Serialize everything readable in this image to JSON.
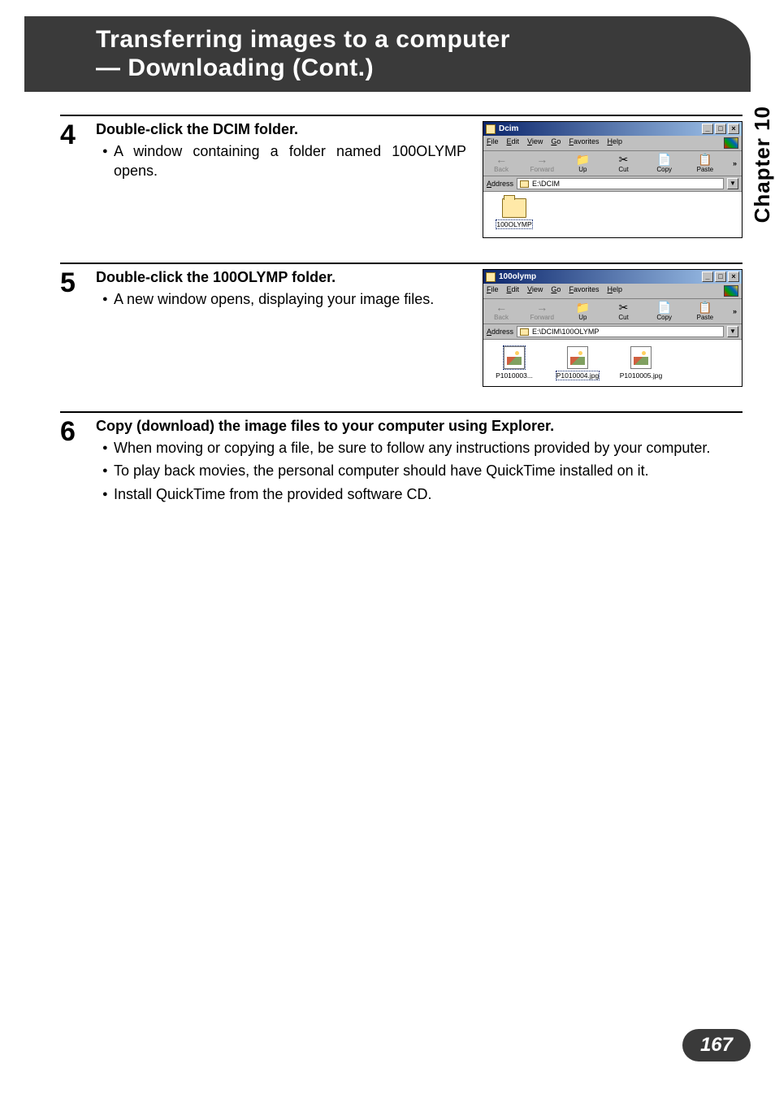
{
  "header": {
    "title_line1": "Transferring images to a computer",
    "title_line2": "— Downloading (Cont.)"
  },
  "sidebar": {
    "label": "Chapter 10"
  },
  "page_number": "167",
  "steps": [
    {
      "num": "4",
      "title": "Double-click the DCIM folder.",
      "bullets": [
        "A window containing a folder named 100OLYMP opens."
      ],
      "explorer": {
        "title": "Dcim",
        "menu": [
          "File",
          "Edit",
          "View",
          "Go",
          "Favorites",
          "Help"
        ],
        "toolbar": [
          {
            "label": "Back",
            "icon": "←",
            "disabled": true
          },
          {
            "label": "Forward",
            "icon": "→",
            "disabled": true
          },
          {
            "label": "Up",
            "icon": "📁",
            "disabled": false
          },
          {
            "label": "Cut",
            "icon": "✂",
            "disabled": false
          },
          {
            "label": "Copy",
            "icon": "📄",
            "disabled": false
          },
          {
            "label": "Paste",
            "icon": "📋",
            "disabled": false
          }
        ],
        "toolbar_overflow": "»",
        "address_label": "Address",
        "address_path": "E:\\DCIM",
        "items": [
          {
            "type": "folder",
            "label": "100OLYMP",
            "selected": true
          }
        ]
      }
    },
    {
      "num": "5",
      "title": "Double-click the 100OLYMP folder.",
      "bullets": [
        "A new window opens, displaying your image files."
      ],
      "explorer": {
        "title": "100olymp",
        "menu": [
          "File",
          "Edit",
          "View",
          "Go",
          "Favorites",
          "Help"
        ],
        "toolbar": [
          {
            "label": "Back",
            "icon": "←",
            "disabled": true
          },
          {
            "label": "Forward",
            "icon": "→",
            "disabled": true
          },
          {
            "label": "Up",
            "icon": "📁",
            "disabled": false
          },
          {
            "label": "Cut",
            "icon": "✂",
            "disabled": false
          },
          {
            "label": "Copy",
            "icon": "📄",
            "disabled": false
          },
          {
            "label": "Paste",
            "icon": "📋",
            "disabled": false
          }
        ],
        "toolbar_overflow": "»",
        "address_label": "Address",
        "address_path": "E:\\DCIM\\100OLYMP",
        "items": [
          {
            "type": "image",
            "label": "P1010003...",
            "selected": false,
            "icon_selected": true
          },
          {
            "type": "image",
            "label": "P1010004.jpg",
            "selected": true,
            "icon_selected": false
          },
          {
            "type": "image",
            "label": "P1010005.jpg",
            "selected": false,
            "icon_selected": false
          }
        ]
      }
    },
    {
      "num": "6",
      "title": "Copy (download) the image files to your computer using Explorer.",
      "bullets": [
        "When moving or copying a file, be sure to follow any instructions provided by your computer.",
        "To play back movies, the personal computer should have QuickTime installed on it.",
        "Install QuickTime from the provided software CD."
      ],
      "explorer": null
    }
  ],
  "win_controls": {
    "min": "_",
    "max": "□",
    "close": "×"
  },
  "colors": {
    "header_bg": "#3a3a3a",
    "page_badge_bg": "#3a3a3a",
    "titlebar_start": "#0a246a",
    "titlebar_end": "#a6caf0",
    "win_bg": "#c0c0c0"
  }
}
